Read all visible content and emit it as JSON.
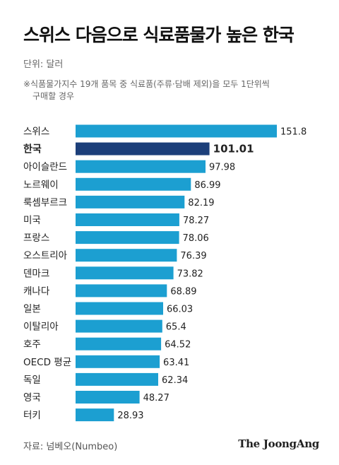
{
  "title": "스위스 다음으로 식료품물가 높은 한국",
  "unit_label": "단위: 달러",
  "note_line1": "※식품물가지수 19개 품목 중 식료품(주류·담배 제외)을 모두 1단위씩",
  "note_line2": "구매할 경우",
  "source": "자료: 넘베오(Numbeo)",
  "brand": "The JoongAng",
  "colors": {
    "bar": "#1c9fd1",
    "highlight": "#1c3f7a"
  },
  "chart_data": {
    "type": "bar",
    "orientation": "horizontal",
    "categories": [
      "스위스",
      "한국",
      "아이슬란드",
      "노르웨이",
      "룩셈부르크",
      "미국",
      "프랑스",
      "오스트리아",
      "덴마크",
      "캐나다",
      "일본",
      "이탈리아",
      "호주",
      "OECD 평균",
      "독일",
      "영국",
      "터키"
    ],
    "values": [
      151.8,
      101.01,
      97.98,
      86.99,
      82.19,
      78.27,
      78.06,
      76.39,
      73.82,
      68.89,
      66.03,
      65.4,
      64.52,
      63.41,
      62.34,
      48.27,
      28.93
    ],
    "value_labels": [
      "151.8",
      "101.01",
      "97.98",
      "86.99",
      "82.19",
      "78.27",
      "78.06",
      "76.39",
      "73.82",
      "68.89",
      "66.03",
      "65.4",
      "64.52",
      "63.41",
      "62.34",
      "48.27",
      "28.93"
    ],
    "highlight": "한국",
    "xlim": [
      0,
      151.8
    ]
  }
}
